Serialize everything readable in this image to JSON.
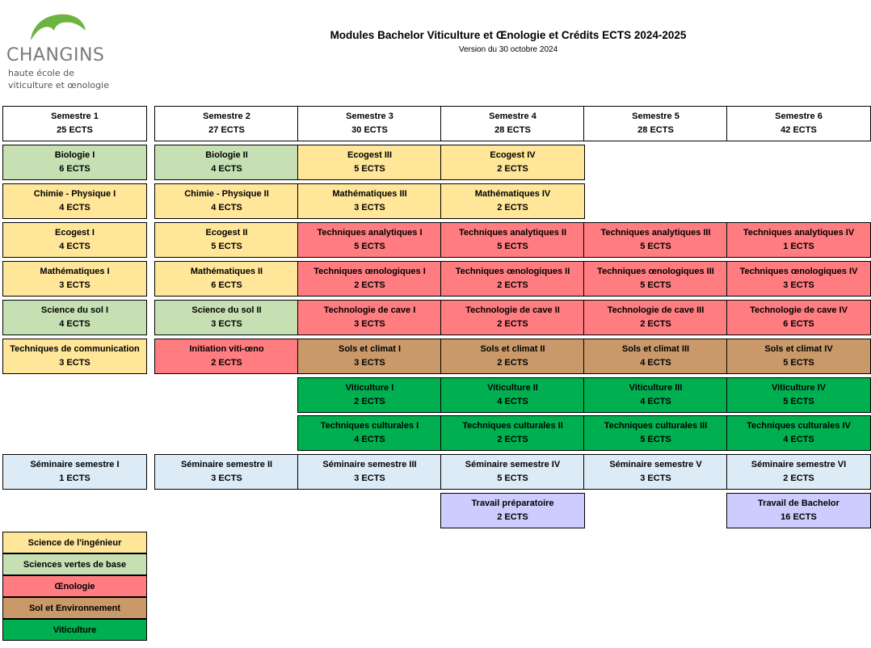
{
  "header": {
    "logo_name": "CHANGINS",
    "logo_line1": "haute école de",
    "logo_line2": "viticulture et œnologie",
    "title": "Modules Bachelor Viticulture et Œnologie et Crédits ECTS 2024-2025",
    "subtitle": "Version du 30 octobre 2024"
  },
  "colors": {
    "ingenieur": "#FFE699",
    "vertes": "#C6E0B4",
    "oenologie": "#FF7C80",
    "sol": "#C9996A",
    "viticulture": "#00B050",
    "seminaire": "#DDEBF7",
    "travail": "#CCCCFF",
    "logo_green": "#6DB33F"
  },
  "semesters": [
    {
      "name": "Semestre 1",
      "ects": "25 ECTS"
    },
    {
      "name": "Semestre 2",
      "ects": "27 ECTS"
    },
    {
      "name": "Semestre 3",
      "ects": "30 ECTS"
    },
    {
      "name": "Semestre 4",
      "ects": "28 ECTS"
    },
    {
      "name": "Semestre 5",
      "ects": "28 ECTS"
    },
    {
      "name": "Semestre 6",
      "ects": "42 ECTS"
    }
  ],
  "modules": {
    "s1": [
      {
        "name": "Biologie I",
        "ects": "6 ECTS",
        "category": "vert"
      },
      {
        "name": "Chimie - Physique I",
        "ects": "4 ECTS",
        "category": "ing"
      },
      {
        "name": "Ecogest I",
        "ects": "4 ECTS",
        "category": "ing"
      },
      {
        "name": "Mathématiques I",
        "ects": "3 ECTS",
        "category": "ing"
      },
      {
        "name": "Science du sol I",
        "ects": "4 ECTS",
        "category": "vert"
      },
      {
        "name": "Techniques de communication",
        "ects": "3 ECTS",
        "category": "ing"
      },
      {
        "name": "Séminaire semestre I",
        "ects": "1 ECTS",
        "category": "sem"
      }
    ],
    "s2": [
      {
        "name": "Biologie II",
        "ects": "4 ECTS",
        "category": "vert"
      },
      {
        "name": "Chimie - Physique II",
        "ects": "4 ECTS",
        "category": "ing"
      },
      {
        "name": "Ecogest II",
        "ects": "5 ECTS",
        "category": "ing"
      },
      {
        "name": "Mathématiques II",
        "ects": "6 ECTS",
        "category": "ing"
      },
      {
        "name": "Science du sol II",
        "ects": "3 ECTS",
        "category": "vert"
      },
      {
        "name": "Initiation viti-œno",
        "ects": "2 ECTS",
        "category": "oeno"
      },
      {
        "name": "Séminaire semestre II",
        "ects": "3 ECTS",
        "category": "sem"
      }
    ],
    "s3": [
      {
        "name": "Ecogest III",
        "ects": "5 ECTS",
        "category": "ing"
      },
      {
        "name": "Mathématiques III",
        "ects": "3 ECTS",
        "category": "ing"
      },
      {
        "name": "Techniques analytiques I",
        "ects": "5 ECTS",
        "category": "oeno"
      },
      {
        "name": "Techniques œnologiques I",
        "ects": "2 ECTS",
        "category": "oeno"
      },
      {
        "name": "Technologie de cave I",
        "ects": "3 ECTS",
        "category": "oeno"
      },
      {
        "name": "Sols et climat I",
        "ects": "3 ECTS",
        "category": "sol"
      },
      {
        "name": "Viticulture I",
        "ects": "2 ECTS",
        "category": "viti"
      },
      {
        "name": "Techniques culturales I",
        "ects": "4 ECTS",
        "category": "viti"
      },
      {
        "name": "Séminaire semestre III",
        "ects": "3 ECTS",
        "category": "sem"
      }
    ],
    "s4": [
      {
        "name": "Ecogest IV",
        "ects": "2 ECTS",
        "category": "ing"
      },
      {
        "name": "Mathématiques IV",
        "ects": "2 ECTS",
        "category": "ing"
      },
      {
        "name": "Techniques analytiques II",
        "ects": "5 ECTS",
        "category": "oeno"
      },
      {
        "name": "Techniques œnologiques II",
        "ects": "2 ECTS",
        "category": "oeno"
      },
      {
        "name": "Technologie de cave II",
        "ects": "2 ECTS",
        "category": "oeno"
      },
      {
        "name": "Sols et climat II",
        "ects": "2 ECTS",
        "category": "sol"
      },
      {
        "name": "Viticulture II",
        "ects": "4 ECTS",
        "category": "viti"
      },
      {
        "name": "Techniques culturales II",
        "ects": "2 ECTS",
        "category": "viti"
      },
      {
        "name": "Séminaire semestre IV",
        "ects": "5 ECTS",
        "category": "sem"
      },
      {
        "name": "Travail préparatoire",
        "ects": "2 ECTS",
        "category": "trav"
      }
    ],
    "s5": [
      {
        "name": "Techniques analytiques III",
        "ects": "5 ECTS",
        "category": "oeno"
      },
      {
        "name": "Techniques œnologiques III",
        "ects": "5 ECTS",
        "category": "oeno"
      },
      {
        "name": "Technologie de cave III",
        "ects": "2 ECTS",
        "category": "oeno"
      },
      {
        "name": "Sols et climat III",
        "ects": "4 ECTS",
        "category": "sol"
      },
      {
        "name": "Viticulture III",
        "ects": "4 ECTS",
        "category": "viti"
      },
      {
        "name": "Techniques culturales III",
        "ects": "5 ECTS",
        "category": "viti"
      },
      {
        "name": "Séminaire semestre V",
        "ects": "3 ECTS",
        "category": "sem"
      }
    ],
    "s6": [
      {
        "name": "Techniques analytiques IV",
        "ects": "1 ECTS",
        "category": "oeno"
      },
      {
        "name": "Techniques œnologiques IV",
        "ects": "3 ECTS",
        "category": "oeno"
      },
      {
        "name": "Technologie de cave IV",
        "ects": "6 ECTS",
        "category": "oeno"
      },
      {
        "name": "Sols et climat IV",
        "ects": "5 ECTS",
        "category": "sol"
      },
      {
        "name": "Viticulture IV",
        "ects": "5 ECTS",
        "category": "viti"
      },
      {
        "name": "Techniques culturales IV",
        "ects": "4 ECTS",
        "category": "viti"
      },
      {
        "name": "Séminaire semestre VI",
        "ects": "2 ECTS",
        "category": "sem"
      },
      {
        "name": "Travail de Bachelor",
        "ects": "16 ECTS",
        "category": "trav"
      }
    ]
  },
  "legend": [
    {
      "label": "Science de l'ingénieur",
      "category": "ing"
    },
    {
      "label": "Sciences vertes de base",
      "category": "vert"
    },
    {
      "label": "Œnologie",
      "category": "oeno"
    },
    {
      "label": "Sol et Environnement",
      "category": "sol"
    },
    {
      "label": "Viticulture",
      "category": "viti"
    }
  ]
}
